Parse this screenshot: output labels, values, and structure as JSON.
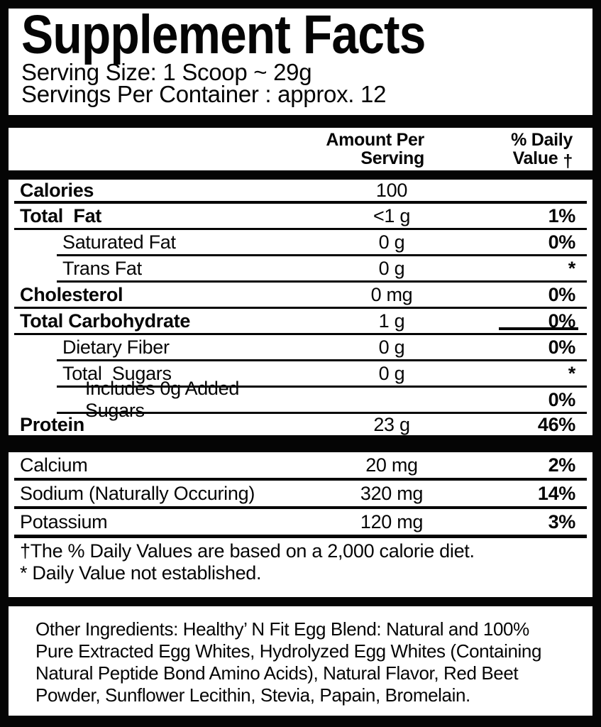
{
  "title": "Supplement Facts",
  "serving": {
    "size_line": "Serving Size: 1 Scoop ~ 29g",
    "per_container_line": "Servings Per Container : approx. 12"
  },
  "header": {
    "amount_line1": "Amount Per",
    "amount_line2": "Serving",
    "pct_line1": "% Daily",
    "pct_line2": "Value",
    "dagger": "†"
  },
  "table": {
    "rows": [
      {
        "label": "Calories",
        "amount": "100",
        "pct": "",
        "bold": true,
        "indent": 0,
        "sep": "medium"
      },
      {
        "label": "Total  Fat",
        "amount": "<1 g",
        "pct": "1%",
        "bold": true,
        "indent": 0,
        "sep": "full"
      },
      {
        "label": "Saturated Fat",
        "amount": "0 g",
        "pct": "0%",
        "bold": false,
        "indent": 1,
        "sep": "indent"
      },
      {
        "label": "Trans Fat",
        "amount": "0 g",
        "pct": "*",
        "bold": false,
        "indent": 1,
        "sep": "indent"
      },
      {
        "label": "Cholesterol",
        "amount": "0 mg",
        "pct": "0%",
        "bold": true,
        "indent": 0,
        "sep": "full"
      },
      {
        "label": "Total Carbohydrate",
        "amount": "1 g",
        "pct": "0%",
        "bold": true,
        "indent": 0,
        "sep": "full",
        "pct_underline": true
      },
      {
        "label": "Dietary Fiber",
        "amount": "0 g",
        "pct": "0%",
        "bold": false,
        "indent": 1,
        "sep": "indent"
      },
      {
        "label": "Total  Sugars",
        "amount": "0 g",
        "pct": "*",
        "bold": false,
        "indent": 1,
        "sep": "indent"
      },
      {
        "label": "Includes 0g Added Sugars",
        "amount": "",
        "pct": "0%",
        "bold": false,
        "indent": 2,
        "sep": "indent"
      },
      {
        "label": "Protein",
        "amount": "23 g",
        "pct": "46%",
        "bold": true,
        "indent": 0,
        "sep": "none"
      }
    ],
    "minerals": [
      {
        "label": "Calcium",
        "amount": "20 mg",
        "pct": "2%",
        "bold": false,
        "indent": 0,
        "sep": "full4"
      },
      {
        "label": "Sodium (Naturally Occuring)",
        "amount": "320 mg",
        "pct": "14%",
        "bold": false,
        "indent": 0,
        "sep": "full4"
      },
      {
        "label": "Potassium",
        "amount": "120 mg",
        "pct": "3%",
        "bold": false,
        "indent": 0,
        "sep": "full5"
      }
    ]
  },
  "footnotes": {
    "daily_values": "†The % Daily Values are based on a 2,000 calorie diet.",
    "not_established": "* Daily Value not established."
  },
  "other_ingredients": {
    "lines": [
      "Other Ingredients: Healthy’ N Fit Egg Blend: Natural and 100%",
      "Pure Extracted Egg Whites, Hydrolyzed Egg Whites (Containing",
      "Natural Peptide Bond Amino Acids), Natural Flavor, Red Beet",
      "Powder, Sunflower Lecithin, Stevia, Papain, Bromelain."
    ]
  },
  "colors": {
    "ink": "#050505",
    "paper": "#ffffff"
  }
}
